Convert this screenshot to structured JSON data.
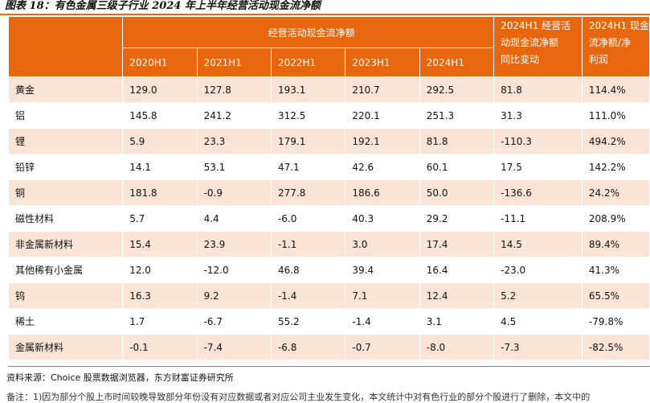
{
  "title": "图表 18：有色金属三级子行业 2024 年上半年经营活动现金流净额",
  "header": {
    "group_label": "经营活动现金流净额",
    "years": [
      "2020H1",
      "2021H1",
      "2022H1",
      "2023H1",
      "2024H1"
    ],
    "change_label_1": "2024H1 经营活",
    "change_label_2": "动现金流净额",
    "change_label_3": "同比变动",
    "ratio_label_1": "2024H1 现金",
    "ratio_label_2": "流净额/净",
    "ratio_label_3": "利润"
  },
  "rows": [
    {
      "name": "黄金",
      "v1": "129.0",
      "v2": "127.8",
      "v3": "193.1",
      "v4": "210.7",
      "v5": "292.5",
      "chg": "81.8",
      "ratio": "114.4%"
    },
    {
      "name": "铝",
      "v1": "145.8",
      "v2": "241.2",
      "v3": "312.5",
      "v4": "220.1",
      "v5": "251.3",
      "chg": "31.3",
      "ratio": "111.0%"
    },
    {
      "name": "锂",
      "v1": "5.9",
      "v2": "23.3",
      "v3": "179.1",
      "v4": "192.1",
      "v5": "81.8",
      "chg": "-110.3",
      "ratio": "494.2%"
    },
    {
      "name": "铅锌",
      "v1": "14.1",
      "v2": "53.1",
      "v3": "47.1",
      "v4": "42.6",
      "v5": "60.1",
      "chg": "17.5",
      "ratio": "142.2%"
    },
    {
      "name": "铜",
      "v1": "181.8",
      "v2": "-0.9",
      "v3": "277.8",
      "v4": "186.6",
      "v5": "50.0",
      "chg": "-136.6",
      "ratio": "24.2%"
    },
    {
      "name": "磁性材料",
      "v1": "5.7",
      "v2": "4.4",
      "v3": "-6.0",
      "v4": "40.3",
      "v5": "29.2",
      "chg": "-11.1",
      "ratio": "208.9%"
    },
    {
      "name": "非金属新材料",
      "v1": "15.4",
      "v2": "23.9",
      "v3": "-1.1",
      "v4": "3.0",
      "v5": "17.4",
      "chg": "14.5",
      "ratio": "89.4%"
    },
    {
      "name": "其他稀有小金属",
      "v1": "12.0",
      "v2": "-12.0",
      "v3": "46.8",
      "v4": "39.4",
      "v5": "16.4",
      "chg": "-23.0",
      "ratio": "41.3%"
    },
    {
      "name": "钨",
      "v1": "16.3",
      "v2": "9.2",
      "v3": "-1.4",
      "v4": "7.1",
      "v5": "12.4",
      "chg": "5.2",
      "ratio": "65.5%"
    },
    {
      "name": "稀土",
      "v1": "1.7",
      "v2": "-6.7",
      "v3": "55.2",
      "v4": "-1.4",
      "v5": "3.1",
      "chg": "4.5",
      "ratio": "-79.8%"
    },
    {
      "name": "金属新材料",
      "v1": "-0.1",
      "v2": "-7.4",
      "v3": "-6.8",
      "v4": "-0.7",
      "v5": "-8.0",
      "chg": "-7.3",
      "ratio": "-82.5%"
    }
  ],
  "source": "资料来源：Choice 股票数据浏览器，东方财富证券研究所",
  "note": "备注：1)因为部分个股上市时间较晚导致部分年份没有对应数据或者对应公司主业发生变化，本文统计中对有色行业的部分个股进行了删除，本文中的"
}
